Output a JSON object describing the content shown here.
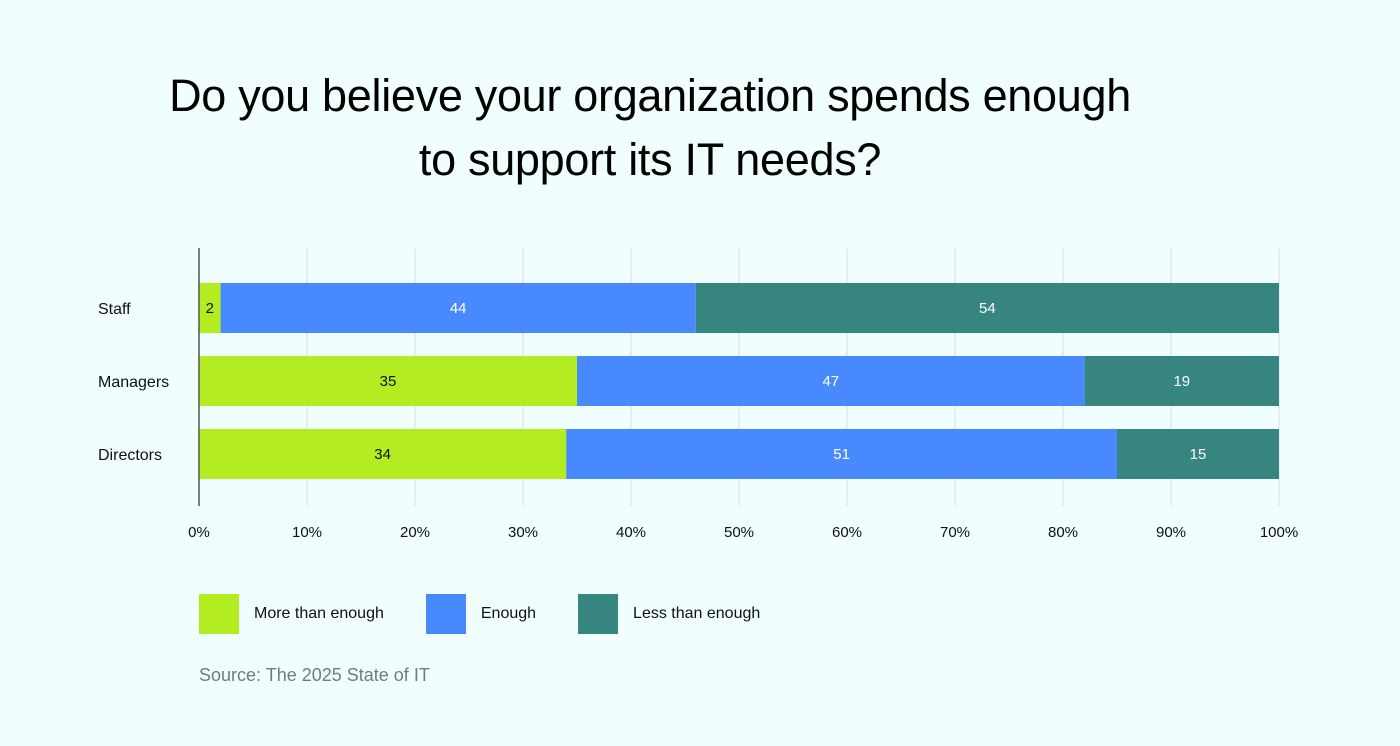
{
  "title_lines": [
    "Do you believe your organization spends enough",
    "to support its IT needs?"
  ],
  "source": "Source: The 2025 State of IT",
  "colors": {
    "background": "#f0fefd",
    "more_than_enough": "#b3ec20",
    "enough": "#4889fe",
    "less_than_enough": "#368580",
    "grid": "#dddddd",
    "axis": "#555555"
  },
  "chart_data": {
    "type": "bar",
    "orientation": "horizontal",
    "stacked": true,
    "categories": [
      "Staff",
      "Managers",
      "Directors"
    ],
    "series": [
      {
        "name": "More than enough",
        "values": [
          2,
          35,
          34
        ],
        "color": "#b3ec20",
        "label_color": "#111111"
      },
      {
        "name": "Enough",
        "values": [
          44,
          47,
          51
        ],
        "color": "#4889fe",
        "label_color": "#ffffff"
      },
      {
        "name": "Less than enough",
        "values": [
          54,
          19,
          15
        ],
        "color": "#368580",
        "label_color": "#ffffff"
      }
    ],
    "xlim": [
      0,
      100
    ],
    "x_ticks": [
      0,
      10,
      20,
      30,
      40,
      50,
      60,
      70,
      80,
      90,
      100
    ],
    "x_tick_labels": [
      "0%",
      "10%",
      "20%",
      "30%",
      "40%",
      "50%",
      "60%",
      "70%",
      "80%",
      "90%",
      "100%"
    ],
    "grid": true,
    "legend_position": "bottom-left"
  }
}
